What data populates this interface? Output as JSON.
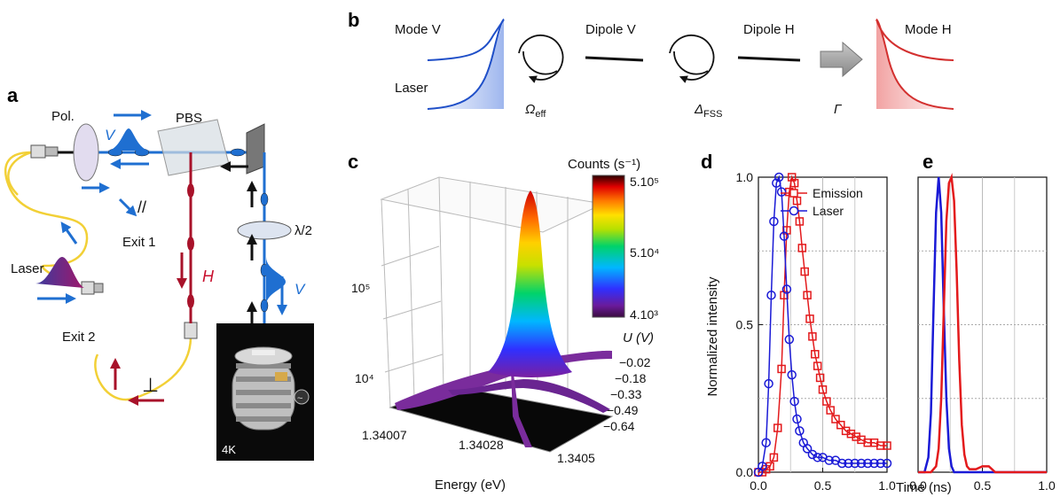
{
  "panels": {
    "a": "a",
    "b": "b",
    "c": "c",
    "d": "d",
    "e": "e"
  },
  "panel_a": {
    "pol": "Pol.",
    "pbs": "PBS",
    "v_label": "V",
    "h_label": "H",
    "exit1": "Exit 1",
    "exit2": "Exit 2",
    "laser": "Laser",
    "half_wave": "λ/2",
    "v_label2": "V",
    "temp": "4K",
    "parallel_sym": "//",
    "perp_sym": "⊥"
  },
  "panel_b": {
    "mode_v": "Mode V",
    "laser": "Laser",
    "dipole_v": "Dipole V",
    "dipole_h": "Dipole H",
    "mode_h": "Mode H",
    "omega_eff": "Ω",
    "omega_sub": "eff",
    "delta_fss": "Δ",
    "delta_sub": "FSS",
    "gamma": "Γ"
  },
  "panel_c": {
    "colorbar_title": "Counts (s⁻¹)",
    "colorbar_ticks": [
      "5.10⁵",
      "5.10⁴",
      "4.10³"
    ],
    "z_ticks": [
      "10⁵",
      "10⁴"
    ],
    "u_label": "U (V)",
    "u_ticks": [
      "−0.02",
      "−0.18",
      "−0.33",
      "−0.49",
      "−0.64"
    ],
    "x_ticks": [
      "1.34007",
      "1.34028",
      "1.3405"
    ],
    "x_label": "Energy (eV)"
  },
  "chart_data": [
    {
      "type": "scatter",
      "panel": "d",
      "xlabel": "Time (ns)",
      "ylabel": "Normalized intensity",
      "xlim": [
        0,
        1.0
      ],
      "ylim": [
        0,
        1.0
      ],
      "x_ticks": [
        "0.0",
        "0.5",
        "1.0"
      ],
      "y_ticks": [
        "0.0",
        "0.5",
        "1.0"
      ],
      "legend_position": "top-right",
      "series": [
        {
          "name": "Emission",
          "color": "#e31a1c",
          "marker": "square",
          "x": [
            0.0,
            0.03,
            0.06,
            0.09,
            0.12,
            0.15,
            0.18,
            0.2,
            0.22,
            0.24,
            0.26,
            0.28,
            0.3,
            0.32,
            0.34,
            0.36,
            0.38,
            0.4,
            0.42,
            0.44,
            0.46,
            0.48,
            0.5,
            0.53,
            0.56,
            0.6,
            0.64,
            0.68,
            0.72,
            0.76,
            0.8,
            0.85,
            0.9,
            0.95,
            1.0
          ],
          "y": [
            0.0,
            0.0,
            0.01,
            0.02,
            0.05,
            0.15,
            0.35,
            0.6,
            0.82,
            0.95,
            1.0,
            0.98,
            0.92,
            0.85,
            0.76,
            0.68,
            0.6,
            0.52,
            0.46,
            0.4,
            0.36,
            0.32,
            0.28,
            0.24,
            0.21,
            0.18,
            0.16,
            0.14,
            0.13,
            0.12,
            0.11,
            0.1,
            0.1,
            0.09,
            0.09
          ]
        },
        {
          "name": "Laser",
          "color": "#1a1ad6",
          "marker": "circle",
          "x": [
            0.0,
            0.03,
            0.06,
            0.08,
            0.1,
            0.12,
            0.14,
            0.16,
            0.18,
            0.2,
            0.22,
            0.24,
            0.26,
            0.28,
            0.3,
            0.32,
            0.35,
            0.38,
            0.42,
            0.46,
            0.5,
            0.55,
            0.6,
            0.65,
            0.7,
            0.75,
            0.8,
            0.85,
            0.9,
            0.95,
            1.0
          ],
          "y": [
            0.0,
            0.02,
            0.1,
            0.3,
            0.6,
            0.85,
            0.98,
            1.0,
            0.95,
            0.8,
            0.62,
            0.45,
            0.33,
            0.24,
            0.18,
            0.14,
            0.1,
            0.08,
            0.06,
            0.05,
            0.05,
            0.04,
            0.04,
            0.03,
            0.03,
            0.03,
            0.03,
            0.03,
            0.03,
            0.03,
            0.03
          ]
        }
      ]
    },
    {
      "type": "line",
      "panel": "e",
      "xlabel": "Time (ns)",
      "xlim": [
        0,
        1.0
      ],
      "ylim": [
        0,
        1.0
      ],
      "x_ticks": [
        "0.0",
        "0.5",
        "1.0"
      ],
      "series": [
        {
          "color": "#1a1ad6",
          "x": [
            0.0,
            0.05,
            0.08,
            0.1,
            0.12,
            0.14,
            0.16,
            0.18,
            0.2,
            0.22,
            0.24,
            0.26,
            0.28,
            0.3,
            0.35,
            0.4,
            1.0
          ],
          "y": [
            0.0,
            0.0,
            0.05,
            0.2,
            0.55,
            0.88,
            1.0,
            0.88,
            0.55,
            0.25,
            0.08,
            0.02,
            0.0,
            0.0,
            0.0,
            0.0,
            0.0
          ]
        },
        {
          "color": "#e31a1c",
          "x": [
            0.0,
            0.1,
            0.14,
            0.16,
            0.18,
            0.2,
            0.22,
            0.24,
            0.26,
            0.28,
            0.3,
            0.32,
            0.34,
            0.36,
            0.38,
            0.4,
            0.45,
            0.5,
            0.55,
            0.6,
            1.0
          ],
          "y": [
            0.0,
            0.0,
            0.02,
            0.08,
            0.25,
            0.55,
            0.85,
            0.98,
            1.0,
            0.92,
            0.68,
            0.38,
            0.16,
            0.06,
            0.02,
            0.01,
            0.01,
            0.02,
            0.02,
            0.0,
            0.0
          ]
        }
      ]
    }
  ]
}
